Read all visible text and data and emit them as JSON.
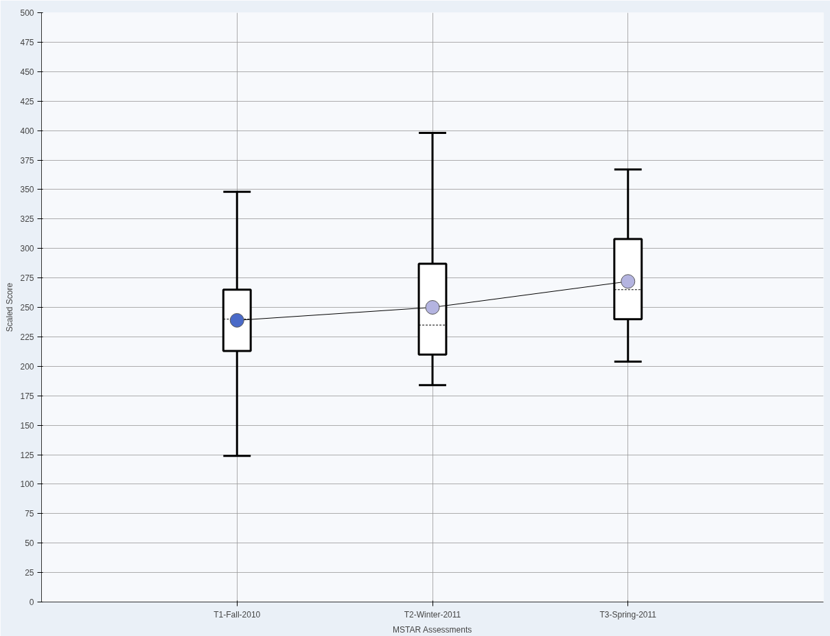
{
  "chart_data": {
    "type": "box",
    "xlabel": "MSTAR Assessments",
    "ylabel": "Scaled Score",
    "categories": [
      "T1-Fall-2010",
      "T2-Winter-2011",
      "T3-Spring-2011"
    ],
    "boxes": [
      {
        "low": 124,
        "q1": 213,
        "median": 240,
        "q3": 265,
        "high": 348
      },
      {
        "low": 184,
        "q1": 210,
        "median": 235,
        "q3": 287,
        "high": 398
      },
      {
        "low": 204,
        "q1": 240,
        "median": 265,
        "q3": 308,
        "high": 367
      }
    ],
    "series": [
      {
        "type": "line",
        "marker": "circle",
        "color": "#000000",
        "colors": [
          "#4a6ac8",
          "#b4b4e0",
          "#b4b4e0"
        ],
        "values": [
          239,
          250,
          272
        ]
      }
    ],
    "ylim": [
      0,
      500
    ],
    "yticks": [
      0,
      25,
      50,
      75,
      100,
      125,
      150,
      175,
      200,
      225,
      250,
      275,
      300,
      325,
      350,
      375,
      400,
      425,
      450,
      475,
      500
    ],
    "grid": true
  }
}
